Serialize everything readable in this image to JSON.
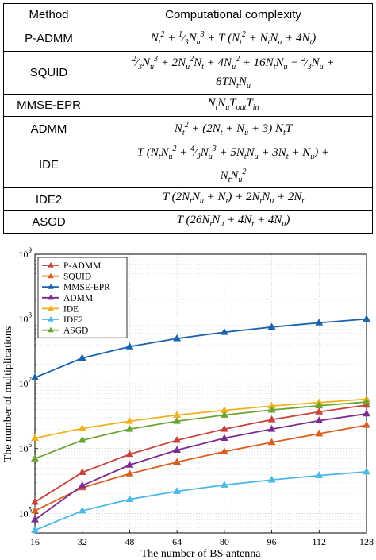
{
  "table": {
    "headers": {
      "method": "Method",
      "complexity": "Computational complexity"
    },
    "rows": [
      {
        "method": "P-ADMM",
        "lines": [
          "N_t^2 + (1/3) N_u^3 + T (N_t^2 + N_t N_u + 4N_t)"
        ]
      },
      {
        "method": "SQUID",
        "lines": [
          "(2/3) N_u^3 + 2N_u^2 N_t + 4N_u^2 + 16N_t N_u − (2/3) N_u +",
          "8T N_t N_u"
        ]
      },
      {
        "method": "MMSE-EPR",
        "lines": [
          "N_t N_u T_out T_in"
        ]
      },
      {
        "method": "ADMM",
        "lines": [
          "N_t^2 + (2N_t + N_u + 3) N_t T"
        ]
      },
      {
        "method": "IDE",
        "lines": [
          "T (N_t N_u^2 + (4/3) N_u^3 + 5N_t N_u + 3N_t + N_u) +",
          "N_t N_u^2"
        ]
      },
      {
        "method": "IDE2",
        "lines": [
          "T (2N_t N_u + N_t) + 2N_t N_u + 2N_t"
        ]
      },
      {
        "method": "ASGD",
        "lines": [
          "T (26N_t N_u + 4N_t + 4N_u)"
        ]
      }
    ]
  },
  "chart_data": {
    "type": "line",
    "xlabel": "The number of BS antenna",
    "ylabel": "The number of multiplications",
    "x": [
      16,
      32,
      48,
      64,
      80,
      96,
      112,
      128
    ],
    "xticks": [
      16,
      32,
      48,
      64,
      80,
      96,
      112,
      128
    ],
    "yscale": "log",
    "ylim": [
      50000,
      1000000000
    ],
    "ytick_labels": [
      "10^5",
      "10^6",
      "10^7",
      "10^8",
      "10^9"
    ],
    "grid": true,
    "legend_position": "top-left",
    "series": [
      {
        "name": "P-ADMM",
        "color": "#c8413b",
        "values": [
          150000,
          430000,
          820000,
          1350000,
          2000000,
          2800000,
          3700000,
          4700000
        ]
      },
      {
        "name": "SQUID",
        "color": "#d95f1e",
        "values": [
          110000,
          250000,
          410000,
          620000,
          900000,
          1250000,
          1700000,
          2300000
        ]
      },
      {
        "name": "MMSE-EPR",
        "color": "#1a62ae",
        "values": [
          12500000,
          25000000,
          37500000,
          50000000,
          62500000,
          75000000,
          87500000,
          100000000
        ]
      },
      {
        "name": "ADMM",
        "color": "#7b2c8f",
        "values": [
          80000,
          270000,
          560000,
          950000,
          1450000,
          2000000,
          2700000,
          3450000
        ]
      },
      {
        "name": "IDE",
        "color": "#f2b01e",
        "values": [
          1450000,
          2050000,
          2650000,
          3300000,
          3900000,
          4550000,
          5150000,
          5800000
        ]
      },
      {
        "name": "IDE2",
        "color": "#4cb8e6",
        "values": [
          55000,
          110000,
          165000,
          220000,
          275000,
          330000,
          385000,
          440000
        ]
      },
      {
        "name": "ASGD",
        "color": "#6aa532",
        "values": [
          700000,
          1350000,
          2000000,
          2650000,
          3300000,
          3950000,
          4600000,
          5250000
        ]
      }
    ]
  }
}
